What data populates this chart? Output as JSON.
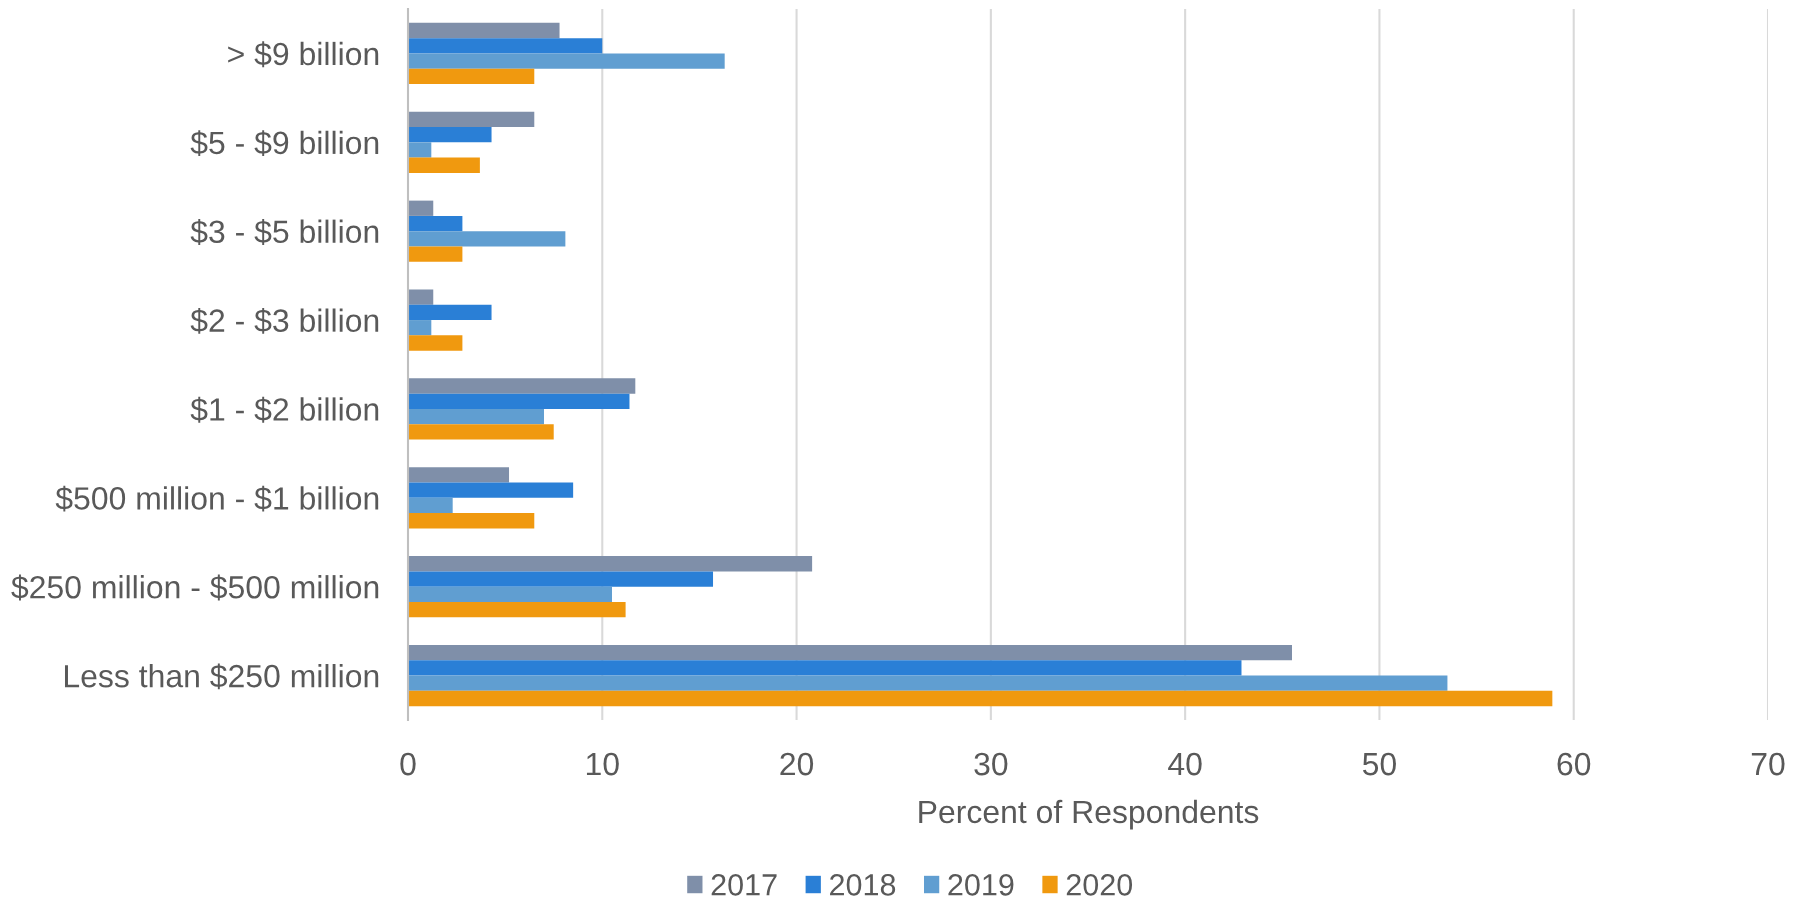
{
  "chart_data": {
    "type": "bar",
    "orientation": "horizontal",
    "categories": [
      "> $9 billion",
      "$5 - $9 billion",
      "$3 - $5 billion",
      "$2 - $3 billion",
      "$1 - $2 billion",
      "$500 million - $1 billion",
      "$250 million - $500 million",
      "Less than $250 million"
    ],
    "series": [
      {
        "name": "2017",
        "color": "#7f8fa9",
        "values": [
          7.8,
          6.5,
          1.3,
          1.3,
          11.7,
          5.2,
          20.8,
          45.5
        ]
      },
      {
        "name": "2018",
        "color": "#2a7fd6",
        "values": [
          10.0,
          4.3,
          2.8,
          4.3,
          11.4,
          8.5,
          15.7,
          42.9
        ]
      },
      {
        "name": "2019",
        "color": "#609ed1",
        "values": [
          16.3,
          1.2,
          8.1,
          1.2,
          7.0,
          2.3,
          10.5,
          53.5
        ]
      },
      {
        "name": "2020",
        "color": "#f0990f",
        "values": [
          6.5,
          3.7,
          2.8,
          2.8,
          7.5,
          6.5,
          11.2,
          58.9
        ]
      }
    ],
    "xlabel": "Percent of Respondents",
    "xlim": [
      0,
      70
    ],
    "xticks": [
      0,
      10,
      20,
      30,
      40,
      50,
      60,
      70
    ],
    "grid": "x",
    "legend": "bottom"
  }
}
